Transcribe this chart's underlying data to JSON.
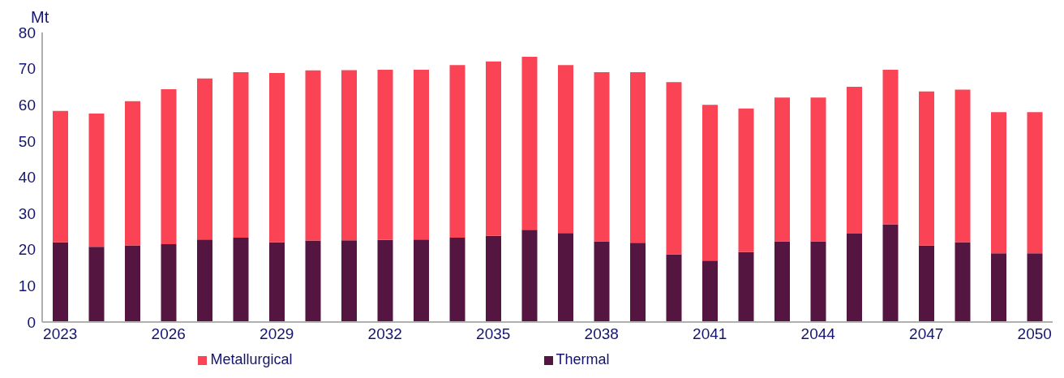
{
  "chart_data": {
    "type": "bar",
    "stacked": true,
    "ylabel": "Mt",
    "categories": [
      "2023",
      null,
      null,
      "2026",
      null,
      null,
      "2029",
      null,
      null,
      "2032",
      null,
      null,
      "2035",
      null,
      null,
      "2038",
      null,
      null,
      "2041",
      null,
      null,
      "2044",
      null,
      null,
      "2047",
      null,
      null,
      "2050"
    ],
    "series": [
      {
        "name": "Thermal",
        "color": "#541540",
        "values": [
          22,
          20.8,
          21.2,
          21.5,
          22.8,
          23.3,
          22,
          22.5,
          22.6,
          22.7,
          22.8,
          23.3,
          23.8,
          25.5,
          24.6,
          22.3,
          21.9,
          18.7,
          17,
          19.3,
          22.3,
          22.3,
          24.4,
          27,
          21.1,
          22.1,
          19,
          19
        ]
      },
      {
        "name": "Metallurgical",
        "color": "#fa4354",
        "values": [
          36.3,
          36.8,
          39.8,
          42.8,
          44.5,
          45.7,
          46.8,
          47,
          47,
          47,
          46.9,
          47.7,
          48.2,
          47.8,
          46.4,
          46.7,
          47.1,
          47.6,
          43,
          39.7,
          39.7,
          39.7,
          40.6,
          42.7,
          42.6,
          42.1,
          39,
          39
        ]
      }
    ],
    "ylim": [
      0,
      80
    ],
    "yticks": [
      0,
      10,
      20,
      30,
      40,
      50,
      60,
      70,
      80
    ],
    "grid": false,
    "legend": "bottom"
  }
}
